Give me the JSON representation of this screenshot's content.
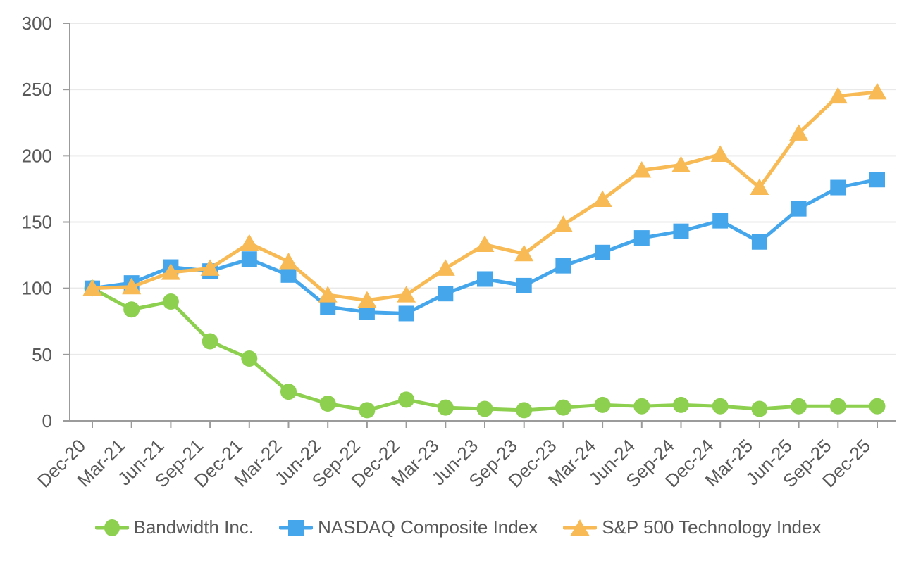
{
  "chart_data": {
    "type": "line",
    "title": "",
    "categories": [
      "Dec-20",
      "Mar-21",
      "Jun-21",
      "Sep-21",
      "Dec-21",
      "Mar-22",
      "Jun-22",
      "Sep-22",
      "Dec-22",
      "Mar-23",
      "Jun-23",
      "Sep-23",
      "Dec-23",
      "Mar-24",
      "Jun-24",
      "Sep-24",
      "Dec-24",
      "Mar-25",
      "Jun-25",
      "Sep-25",
      "Dec-25"
    ],
    "series": [
      {
        "name": "Bandwidth Inc.",
        "marker": "circle",
        "color": "#8DCF4F",
        "values": [
          100,
          84,
          90,
          60,
          47,
          22,
          13,
          8,
          16,
          10,
          9,
          8,
          10,
          12,
          11,
          12,
          11,
          9,
          11,
          11,
          11
        ]
      },
      {
        "name": "NASDAQ Composite Index",
        "marker": "square",
        "color": "#45A6EC",
        "values": [
          100,
          104,
          116,
          113,
          122,
          110,
          86,
          82,
          81,
          96,
          107,
          102,
          117,
          127,
          138,
          143,
          151,
          135,
          160,
          176,
          182
        ]
      },
      {
        "name": "S&P 500 Technology Index",
        "marker": "triangle",
        "color": "#F7BA55",
        "values": [
          100,
          101,
          112,
          115,
          134,
          120,
          95,
          91,
          95,
          115,
          133,
          126,
          148,
          167,
          189,
          193,
          201,
          176,
          217,
          245,
          248
        ]
      }
    ],
    "y_axis": {
      "min": 0,
      "max": 300,
      "tick_interval": 50,
      "tick_labels": [
        "0",
        "50",
        "100",
        "150",
        "200",
        "250",
        "300"
      ]
    },
    "x_axis": {
      "label_rotation": -45
    },
    "grid": true,
    "legend_position": "bottom",
    "colors": {
      "text": "#595959",
      "axis": "#9B9B9B",
      "gridline": "#E9E9E9",
      "background": "#FFFFFF"
    }
  }
}
